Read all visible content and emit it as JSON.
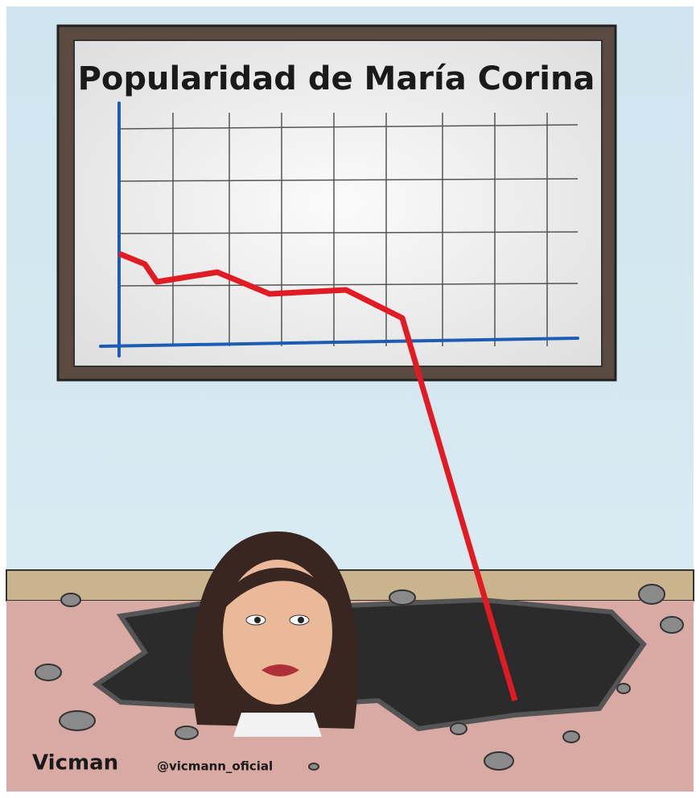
{
  "board": {
    "title": "Popularidad de María Corina"
  },
  "credits": {
    "author": "Vicman",
    "handle": "@vicmann_oficial"
  }
}
